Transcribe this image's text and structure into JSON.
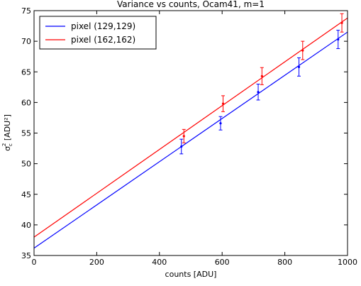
{
  "chart_data": {
    "type": "line",
    "title": "Variance vs counts, Ocam41, m=1",
    "xlabel": "counts [ADU]",
    "ylabel_main": "σ",
    "ylabel_sub": "c",
    "ylabel_sup": "2",
    "ylabel_unit": " [ADU²]",
    "xlim": [
      0,
      1000
    ],
    "ylim": [
      35,
      75
    ],
    "xticks": [
      0,
      200,
      400,
      600,
      800,
      1000
    ],
    "yticks": [
      35,
      40,
      45,
      50,
      55,
      60,
      65,
      70,
      75
    ],
    "grid": false,
    "legend_position": "top-left",
    "series": [
      {
        "name": "pixel (129,129)",
        "color": "#0000ff",
        "fit": {
          "x": [
            0,
            1000
          ],
          "y": [
            36.2,
            71.5
          ]
        },
        "points": [
          {
            "x": 470,
            "y": 52.8,
            "err": 1.2
          },
          {
            "x": 595,
            "y": 56.6,
            "err": 1.1
          },
          {
            "x": 715,
            "y": 61.7,
            "err": 1.3
          },
          {
            "x": 845,
            "y": 65.8,
            "err": 1.5
          },
          {
            "x": 970,
            "y": 70.3,
            "err": 1.5
          }
        ]
      },
      {
        "name": "pixel (162,162)",
        "color": "#ff0000",
        "fit": {
          "x": [
            0,
            1000
          ],
          "y": [
            38.0,
            73.8
          ]
        },
        "points": [
          {
            "x": 478,
            "y": 54.5,
            "err": 1.1
          },
          {
            "x": 603,
            "y": 59.8,
            "err": 1.3
          },
          {
            "x": 727,
            "y": 64.3,
            "err": 1.4
          },
          {
            "x": 857,
            "y": 68.5,
            "err": 1.5
          },
          {
            "x": 982,
            "y": 73.0,
            "err": 1.5
          }
        ]
      }
    ]
  }
}
